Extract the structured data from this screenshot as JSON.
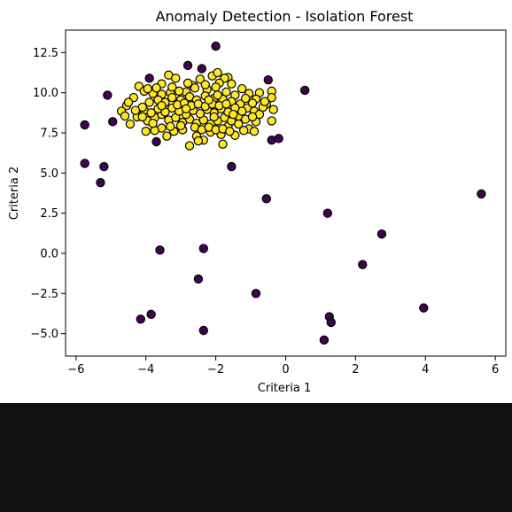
{
  "chart_data": {
    "type": "scatter",
    "title": "Anomaly Detection - Isolation Forest",
    "xlabel": "Criteria 1",
    "ylabel": "Criteria 2",
    "xlim": [
      -6.3,
      6.3
    ],
    "ylim": [
      -6.4,
      13.9
    ],
    "xticks": [
      -6,
      -4,
      -2,
      0,
      2,
      4,
      6
    ],
    "xtick_labels": [
      "−6",
      "−4",
      "−2",
      "0",
      "2",
      "4",
      "6"
    ],
    "yticks": [
      -5.0,
      -2.5,
      0.0,
      2.5,
      5.0,
      7.5,
      10.0,
      12.5
    ],
    "ytick_labels": [
      "−5.0",
      "−2.5",
      "0.0",
      "2.5",
      "5.0",
      "7.5",
      "10.0",
      "12.5"
    ],
    "grid": false,
    "legend": false,
    "colors": {
      "inlier": "#fde725",
      "outlier": "#440154",
      "marker_edge": "#000000"
    },
    "outliers": [
      [
        -2.0,
        12.9
      ],
      [
        -2.8,
        11.7
      ],
      [
        -2.4,
        11.5
      ],
      [
        -3.9,
        10.9
      ],
      [
        -0.5,
        10.8
      ],
      [
        0.55,
        10.15
      ],
      [
        -5.1,
        9.85
      ],
      [
        -4.95,
        8.2
      ],
      [
        -5.75,
        8.0
      ],
      [
        -3.7,
        6.95
      ],
      [
        -0.4,
        7.05
      ],
      [
        -0.2,
        7.15
      ],
      [
        -5.75,
        5.6
      ],
      [
        -5.2,
        5.4
      ],
      [
        -1.55,
        5.4
      ],
      [
        -5.3,
        4.4
      ],
      [
        5.6,
        3.7
      ],
      [
        -0.55,
        3.4
      ],
      [
        1.2,
        2.5
      ],
      [
        2.75,
        1.2
      ],
      [
        -3.6,
        0.2
      ],
      [
        -2.35,
        0.3
      ],
      [
        2.2,
        -0.7
      ],
      [
        -2.5,
        -1.6
      ],
      [
        -0.85,
        -2.5
      ],
      [
        3.95,
        -3.4
      ],
      [
        -3.85,
        -3.8
      ],
      [
        -4.15,
        -4.1
      ],
      [
        1.25,
        -3.95
      ],
      [
        1.3,
        -4.3
      ],
      [
        -2.35,
        -4.8
      ],
      [
        1.1,
        -5.4
      ]
    ],
    "inliers": [
      [
        -3.35,
        11.1
      ],
      [
        -2.1,
        11.05
      ],
      [
        -1.95,
        11.25
      ],
      [
        -1.65,
        10.95
      ],
      [
        -1.75,
        10.9
      ],
      [
        -3.15,
        10.9
      ],
      [
        -2.45,
        10.85
      ],
      [
        -4.2,
        10.4
      ],
      [
        -3.55,
        10.55
      ],
      [
        -2.65,
        10.45
      ],
      [
        -1.9,
        10.6
      ],
      [
        -1.25,
        10.25
      ],
      [
        -0.75,
        10.0
      ],
      [
        -0.4,
        10.1
      ],
      [
        -0.4,
        9.7
      ],
      [
        -0.55,
        9.3
      ],
      [
        -0.65,
        9.1
      ],
      [
        -0.85,
        9.6
      ],
      [
        -1.05,
        9.95
      ],
      [
        -1.45,
        9.85
      ],
      [
        -1.7,
        10.05
      ],
      [
        -2.25,
        10.2
      ],
      [
        -2.6,
        10.3
      ],
      [
        -2.85,
        10.05
      ],
      [
        -3.05,
        10.1
      ],
      [
        -3.3,
        10.0
      ],
      [
        -3.55,
        9.9
      ],
      [
        -3.8,
        9.95
      ],
      [
        -4.05,
        10.1
      ],
      [
        -4.35,
        9.7
      ],
      [
        -4.55,
        9.2
      ],
      [
        -4.7,
        8.85
      ],
      [
        -4.6,
        8.55
      ],
      [
        -4.45,
        8.05
      ],
      [
        -4.25,
        8.5
      ],
      [
        -4.05,
        8.9
      ],
      [
        -3.9,
        9.4
      ],
      [
        -3.65,
        9.55
      ],
      [
        -3.45,
        9.4
      ],
      [
        -3.25,
        9.7
      ],
      [
        -3.0,
        9.55
      ],
      [
        -2.75,
        9.75
      ],
      [
        -2.55,
        9.55
      ],
      [
        -2.3,
        9.8
      ],
      [
        -2.05,
        9.65
      ],
      [
        -1.8,
        9.6
      ],
      [
        -1.55,
        9.45
      ],
      [
        -1.3,
        9.3
      ],
      [
        -1.1,
        9.05
      ],
      [
        -0.9,
        8.85
      ],
      [
        -0.75,
        8.65
      ],
      [
        -0.85,
        8.2
      ],
      [
        -1.05,
        7.75
      ],
      [
        -0.9,
        7.6
      ],
      [
        -0.4,
        8.25
      ],
      [
        -1.2,
        7.65
      ],
      [
        -1.45,
        7.35
      ],
      [
        -1.65,
        7.9
      ],
      [
        -1.85,
        7.4
      ],
      [
        -2.15,
        7.55
      ],
      [
        -2.35,
        7.05
      ],
      [
        -2.55,
        7.3
      ],
      [
        -2.75,
        6.7
      ],
      [
        -2.95,
        7.7
      ],
      [
        -3.2,
        7.6
      ],
      [
        -3.4,
        7.3
      ],
      [
        -3.55,
        7.8
      ],
      [
        -3.75,
        7.65
      ],
      [
        -4.0,
        7.6
      ],
      [
        -3.95,
        8.25
      ],
      [
        -3.75,
        8.45
      ],
      [
        -3.55,
        8.65
      ],
      [
        -3.35,
        8.3
      ],
      [
        -3.15,
        8.45
      ],
      [
        -2.95,
        8.15
      ],
      [
        -2.75,
        8.35
      ],
      [
        -2.55,
        8.1
      ],
      [
        -2.35,
        8.3
      ],
      [
        -2.15,
        8.05
      ],
      [
        -1.95,
        8.25
      ],
      [
        -1.75,
        8.45
      ],
      [
        -1.55,
        8.25
      ],
      [
        -1.35,
        8.55
      ],
      [
        -1.15,
        8.35
      ],
      [
        -0.95,
        8.5
      ],
      [
        -1.25,
        8.85
      ],
      [
        -1.45,
        9.05
      ],
      [
        -1.65,
        8.8
      ],
      [
        -1.85,
        9.0
      ],
      [
        -2.05,
        8.75
      ],
      [
        -2.25,
        8.95
      ],
      [
        -2.45,
        8.7
      ],
      [
        -2.65,
        8.9
      ],
      [
        -2.85,
        8.65
      ],
      [
        -3.05,
        8.85
      ],
      [
        -3.25,
        9.05
      ],
      [
        -3.45,
        8.8
      ],
      [
        -3.65,
        9.0
      ],
      [
        -3.85,
        8.75
      ],
      [
        -4.1,
        9.1
      ],
      [
        -4.3,
        8.9
      ],
      [
        -3.1,
        9.25
      ],
      [
        -2.9,
        9.35
      ],
      [
        -2.7,
        9.2
      ],
      [
        -2.5,
        9.3
      ],
      [
        -2.3,
        9.15
      ],
      [
        -2.1,
        9.3
      ],
      [
        -1.9,
        9.2
      ],
      [
        -1.7,
        9.3
      ],
      [
        -1.5,
        8.65
      ],
      [
        -2.6,
        7.85
      ],
      [
        -2.4,
        7.7
      ],
      [
        -2.2,
        7.85
      ],
      [
        -2.0,
        7.7
      ],
      [
        -1.8,
        7.75
      ],
      [
        -3.0,
        7.95
      ],
      [
        -3.3,
        7.9
      ],
      [
        -2.3,
        10.5
      ],
      [
        -2.0,
        10.35
      ],
      [
        -2.8,
        10.6
      ],
      [
        -1.55,
        10.55
      ],
      [
        -3.7,
        10.3
      ],
      [
        -3.95,
        10.25
      ],
      [
        -1.15,
        9.65
      ],
      [
        -0.6,
        9.45
      ],
      [
        -0.35,
        8.95
      ],
      [
        -2.5,
        7.0
      ],
      [
        -1.8,
        6.8
      ],
      [
        -3.25,
        10.35
      ],
      [
        -4.5,
        9.4
      ],
      [
        -2.2,
        9.55
      ],
      [
        -1.95,
        9.85
      ],
      [
        -3.55,
        9.2
      ],
      [
        -2.85,
        9.0
      ],
      [
        -1.6,
        7.6
      ],
      [
        -0.95,
        9.35
      ],
      [
        -4.1,
        8.5
      ],
      [
        -3.8,
        8.1
      ],
      [
        -2.05,
        8.5
      ],
      [
        -1.35,
        8.05
      ]
    ]
  }
}
